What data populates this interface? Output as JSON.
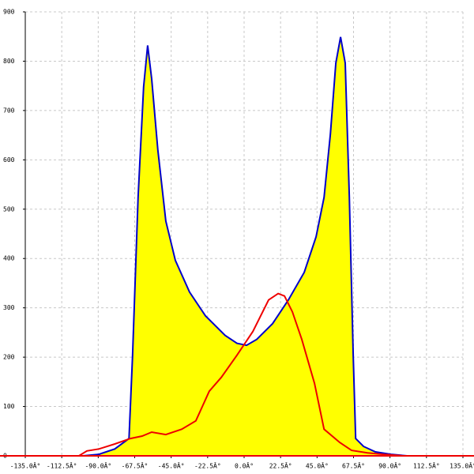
{
  "chart_data": {
    "type": "area_line",
    "xlim": [
      -135,
      135
    ],
    "ylim": [
      0,
      900
    ],
    "xticks": [
      {
        "value": -135,
        "label": "-135.0Â°"
      },
      {
        "value": -112.5,
        "label": "-112.5Â°"
      },
      {
        "value": -90,
        "label": "-90.0Â°"
      },
      {
        "value": -67.5,
        "label": "-67.5Â°"
      },
      {
        "value": -45,
        "label": "-45.0Â°"
      },
      {
        "value": -22.5,
        "label": "-22.5Â°"
      },
      {
        "value": 0,
        "label": "0.0Â°"
      },
      {
        "value": 22.5,
        "label": "22.5Â°"
      },
      {
        "value": 45,
        "label": "45.0Â°"
      },
      {
        "value": 67.5,
        "label": "67.5Â°"
      },
      {
        "value": 90,
        "label": "90.0Â°"
      },
      {
        "value": 112.5,
        "label": "112.5Â°"
      },
      {
        "value": 135,
        "label": "135.0Â°"
      }
    ],
    "yticks": [
      0,
      100,
      200,
      300,
      400,
      500,
      600,
      700,
      800,
      900
    ],
    "grid": true,
    "series": [
      {
        "color": "#0000cc",
        "fill": "#ffff00",
        "x": [
          -99.4,
          -89.6,
          -79.8,
          -71,
          -68.8,
          -65.4,
          -62,
          -59.5,
          -57,
          -53.2,
          -48.3,
          -42.4,
          -33.7,
          -23.9,
          -11.7,
          -4.4,
          1.5,
          7.8,
          17.6,
          27.3,
          37.1,
          44.4,
          49.3,
          53.2,
          56.6,
          59.5,
          62.4,
          64.9,
          67.3,
          68.8,
          73.7,
          81,
          90.7,
          100.5
        ],
        "values": [
          0,
          3,
          14,
          35,
          203,
          524,
          748,
          832,
          764,
          620,
          476,
          396,
          332,
          284,
          244,
          228,
          224,
          236,
          268,
          316,
          372,
          444,
          524,
          652,
          796,
          849,
          796,
          524,
          204,
          35,
          19,
          8,
          3,
          0
        ]
      },
      {
        "color": "#ee0000",
        "x": [
          -101.9,
          -97,
          -89.6,
          -79.8,
          -70.2,
          -62.9,
          -57,
          -48.3,
          -38.5,
          -29.8,
          -21.5,
          -14.1,
          -4.4,
          5.4,
          15.1,
          21,
          24.9,
          29.8,
          35.6,
          43.4,
          49.3,
          59,
          66.3,
          76.1,
          85.9,
          98
        ],
        "values": [
          0,
          10,
          14,
          24,
          35,
          40,
          48,
          43,
          54,
          71,
          131,
          159,
          204,
          252,
          316,
          329,
          324,
          292,
          236,
          147,
          54,
          27,
          11,
          6,
          3,
          0
        ]
      }
    ]
  }
}
